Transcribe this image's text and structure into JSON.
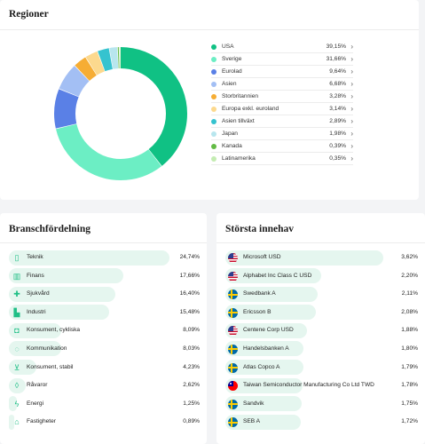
{
  "regioner": {
    "title": "Regioner",
    "items": [
      {
        "name": "USA",
        "value": "39,15%",
        "pct": 39.15,
        "color": "#10c184"
      },
      {
        "name": "Sverige",
        "value": "31,66%",
        "pct": 31.66,
        "color": "#6ceec4"
      },
      {
        "name": "Eurolad",
        "value": "9,64%",
        "pct": 9.64,
        "color": "#5a80e6"
      },
      {
        "name": "Asien",
        "value": "6,68%",
        "pct": 6.68,
        "color": "#a3bff4"
      },
      {
        "name": "Storbritannien",
        "value": "3,28%",
        "pct": 3.28,
        "color": "#f6ad34"
      },
      {
        "name": "Europa exkl. euroland",
        "value": "3,14%",
        "pct": 3.14,
        "color": "#fcd98e"
      },
      {
        "name": "Asien tillväxt",
        "value": "2,89%",
        "pct": 2.89,
        "color": "#35c3cf"
      },
      {
        "name": "Japan",
        "value": "1,98%",
        "pct": 1.98,
        "color": "#b8e6ee"
      },
      {
        "name": "Kanada",
        "value": "0,39%",
        "pct": 0.39,
        "color": "#63bb45"
      },
      {
        "name": "Latinamerika",
        "value": "0,35%",
        "pct": 0.35,
        "color": "#c4ecb2"
      }
    ]
  },
  "bransch": {
    "title": "Branschfördelning",
    "items": [
      {
        "name": "Teknik",
        "value": "24,74%",
        "pct": 24.74,
        "icon": "phone-icon"
      },
      {
        "name": "Finans",
        "value": "17,66%",
        "pct": 17.66,
        "icon": "bank-icon"
      },
      {
        "name": "Sjukvård",
        "value": "16,40%",
        "pct": 16.4,
        "icon": "medical-icon"
      },
      {
        "name": "Industri",
        "value": "15,48%",
        "pct": 15.48,
        "icon": "factory-icon"
      },
      {
        "name": "Konsument, cykliska",
        "value": "8,09%",
        "pct": 8.09,
        "icon": "car-icon"
      },
      {
        "name": "Kommunikation",
        "value": "8,03%",
        "pct": 8.03,
        "icon": "chat-icon"
      },
      {
        "name": "Konsument, stabil",
        "value": "4,23%",
        "pct": 4.23,
        "icon": "cart-icon"
      },
      {
        "name": "Råvaror",
        "value": "2,62%",
        "pct": 2.62,
        "icon": "droplet-icon"
      },
      {
        "name": "Energi",
        "value": "1,25%",
        "pct": 1.25,
        "icon": "bolt-icon"
      },
      {
        "name": "Fastigheter",
        "value": "0,89%",
        "pct": 0.89,
        "icon": "house-icon"
      }
    ]
  },
  "innehav": {
    "title": "Största innehav",
    "items": [
      {
        "name": "Microsoft USD",
        "value": "3,62%",
        "pct": 3.62,
        "flag": "us"
      },
      {
        "name": "Alphabet Inc Class C USD",
        "value": "2,20%",
        "pct": 2.2,
        "flag": "us"
      },
      {
        "name": "Swedbank A",
        "value": "2,11%",
        "pct": 2.11,
        "flag": "se"
      },
      {
        "name": "Ericsson B",
        "value": "2,08%",
        "pct": 2.08,
        "flag": "se"
      },
      {
        "name": "Centene Corp USD",
        "value": "1,88%",
        "pct": 1.88,
        "flag": "us"
      },
      {
        "name": "Handelsbanken A",
        "value": "1,80%",
        "pct": 1.8,
        "flag": "se"
      },
      {
        "name": "Atlas Copco A",
        "value": "1,79%",
        "pct": 1.79,
        "flag": "se"
      },
      {
        "name": "Taiwan Semiconductor Manufacturing Co Ltd TWD",
        "value": "1,78%",
        "pct": 1.78,
        "flag": "tw"
      },
      {
        "name": "Sandvik",
        "value": "1,75%",
        "pct": 1.75,
        "flag": "se"
      },
      {
        "name": "SEB A",
        "value": "1,72%",
        "pct": 1.72,
        "flag": "se"
      }
    ]
  }
}
